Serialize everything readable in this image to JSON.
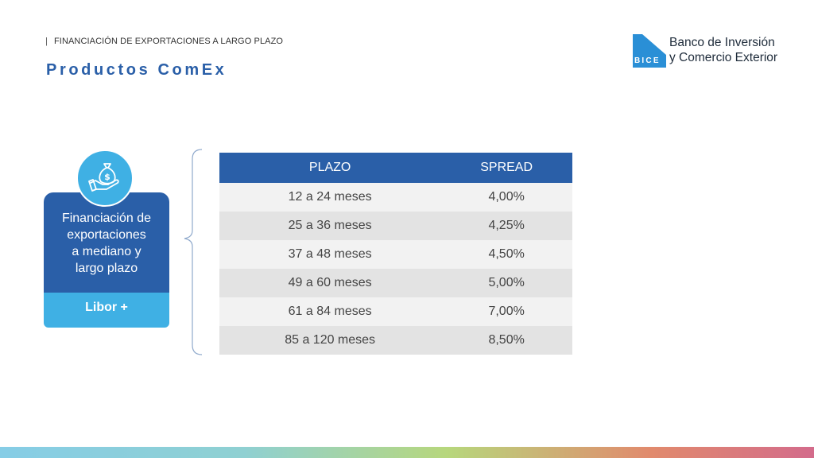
{
  "header": {
    "separator": "|",
    "section": "FINANCIACIÓN DE EXPORTACIONES A LARGO PLAZO",
    "title": "Productos ComEx"
  },
  "logo": {
    "code": "BICE",
    "line1": "Banco de Inversión",
    "line2": "y Comercio Exterior",
    "color": "#2a8fd6"
  },
  "card": {
    "icon": "money-bag-hand-icon",
    "text_lines": [
      "Financiación de",
      "exportaciones",
      "a mediano y",
      "largo plazo"
    ],
    "bottom_label": "Libor +",
    "top_color": "#2a5fa8",
    "bottom_color": "#3fb0e4"
  },
  "table": {
    "headers": [
      "PLAZO",
      "SPREAD"
    ],
    "rows": [
      [
        "12 a 24 meses",
        "4,00%"
      ],
      [
        "25 a 36 meses",
        "4,25%"
      ],
      [
        "37 a 48 meses",
        "4,50%"
      ],
      [
        "49 a 60 meses",
        "5,00%"
      ],
      [
        "61 a 84 meses",
        "7,00%"
      ],
      [
        "85 a 120 meses",
        "8,50%"
      ]
    ],
    "header_color": "#2a5fa8"
  }
}
